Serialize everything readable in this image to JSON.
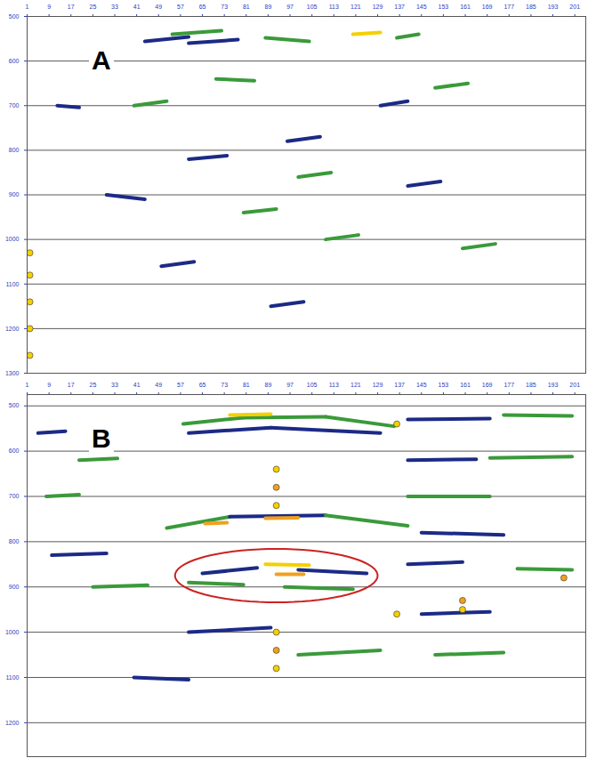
{
  "chart_data": [
    {
      "type": "seismic",
      "title": "A",
      "xlim": [
        1,
        205
      ],
      "xticks": [
        1,
        9,
        17,
        25,
        33,
        41,
        49,
        57,
        65,
        73,
        81,
        89,
        97,
        105,
        113,
        121,
        129,
        137,
        145,
        153,
        161,
        169,
        177,
        185,
        193,
        201
      ],
      "ylim": [
        500,
        1300
      ],
      "yticks": [
        500,
        600,
        700,
        800,
        900,
        1000,
        1100,
        1200,
        1300
      ],
      "grid": true,
      "events": [
        {
          "x": [
            44,
            60
          ],
          "y": [
            556,
            546
          ],
          "color": "#1c2a86"
        },
        {
          "x": [
            54,
            72
          ],
          "y": [
            540,
            532
          ],
          "color": "#3a9a3a"
        },
        {
          "x": [
            60,
            78
          ],
          "y": [
            560,
            552
          ],
          "color": "#1c2a86"
        },
        {
          "x": [
            88,
            104
          ],
          "y": [
            548,
            556
          ],
          "color": "#3a9a3a"
        },
        {
          "x": [
            120,
            130
          ],
          "y": [
            540,
            536
          ],
          "color": "#f4d000"
        },
        {
          "x": [
            136,
            144
          ],
          "y": [
            548,
            540
          ],
          "color": "#3a9a3a"
        },
        {
          "x": [
            12,
            20
          ],
          "y": [
            700,
            704
          ],
          "color": "#1c2a86"
        },
        {
          "x": [
            70,
            84
          ],
          "y": [
            640,
            644
          ],
          "color": "#3a9a3a"
        },
        {
          "x": [
            40,
            52
          ],
          "y": [
            700,
            690
          ],
          "color": "#3a9a3a"
        },
        {
          "x": [
            96,
            108
          ],
          "y": [
            780,
            770
          ],
          "color": "#1c2a86"
        },
        {
          "x": [
            130,
            140
          ],
          "y": [
            700,
            690
          ],
          "color": "#1c2a86"
        },
        {
          "x": [
            150,
            162
          ],
          "y": [
            660,
            650
          ],
          "color": "#3a9a3a"
        },
        {
          "x": [
            60,
            74
          ],
          "y": [
            820,
            812
          ],
          "color": "#1c2a86"
        },
        {
          "x": [
            100,
            112
          ],
          "y": [
            860,
            850
          ],
          "color": "#3a9a3a"
        },
        {
          "x": [
            30,
            44
          ],
          "y": [
            900,
            910
          ],
          "color": "#1c2a86"
        },
        {
          "x": [
            80,
            92
          ],
          "y": [
            940,
            932
          ],
          "color": "#3a9a3a"
        },
        {
          "x": [
            140,
            152
          ],
          "y": [
            880,
            870
          ],
          "color": "#1c2a86"
        },
        {
          "x": [
            110,
            122
          ],
          "y": [
            1000,
            990
          ],
          "color": "#3a9a3a"
        },
        {
          "x": [
            50,
            62
          ],
          "y": [
            1060,
            1050
          ],
          "color": "#1c2a86"
        },
        {
          "x": [
            160,
            172
          ],
          "y": [
            1020,
            1010
          ],
          "color": "#3a9a3a"
        },
        {
          "x": [
            90,
            102
          ],
          "y": [
            1150,
            1140
          ],
          "color": "#1c2a86"
        }
      ],
      "spots": [
        {
          "x": 2,
          "y": 1030,
          "color": "#f4d000"
        },
        {
          "x": 2,
          "y": 1080,
          "color": "#f4d000"
        },
        {
          "x": 2,
          "y": 1140,
          "color": "#f4d000"
        },
        {
          "x": 2,
          "y": 1200,
          "color": "#f4d000"
        },
        {
          "x": 2,
          "y": 1260,
          "color": "#f4d000"
        }
      ]
    },
    {
      "type": "seismic",
      "title": "B",
      "xlim": [
        1,
        205
      ],
      "xticks": [
        1,
        9,
        17,
        25,
        33,
        41,
        49,
        57,
        65,
        73,
        81,
        89,
        97,
        105,
        113,
        121,
        129,
        137,
        145,
        153,
        161,
        169,
        177,
        185,
        193,
        201
      ],
      "ylim": [
        475,
        1275
      ],
      "yticks": [
        500,
        600,
        700,
        800,
        900,
        1000,
        1100,
        1200
      ],
      "grid": true,
      "events": [
        {
          "x": [
            58,
            80
          ],
          "y": [
            540,
            526
          ],
          "color": "#3a9a3a"
        },
        {
          "x": [
            80,
            110
          ],
          "y": [
            526,
            524
          ],
          "color": "#3a9a3a"
        },
        {
          "x": [
            110,
            135
          ],
          "y": [
            524,
            545
          ],
          "color": "#3a9a3a"
        },
        {
          "x": [
            60,
            90
          ],
          "y": [
            560,
            548
          ],
          "color": "#1c2a86"
        },
        {
          "x": [
            90,
            130
          ],
          "y": [
            548,
            560
          ],
          "color": "#1c2a86"
        },
        {
          "x": [
            75,
            90
          ],
          "y": [
            520,
            518
          ],
          "color": "#f4d000"
        },
        {
          "x": [
            52,
            75
          ],
          "y": [
            770,
            745
          ],
          "color": "#3a9a3a"
        },
        {
          "x": [
            75,
            110
          ],
          "y": [
            745,
            742
          ],
          "color": "#1c2a86"
        },
        {
          "x": [
            110,
            140
          ],
          "y": [
            742,
            765
          ],
          "color": "#3a9a3a"
        },
        {
          "x": [
            66,
            74
          ],
          "y": [
            760,
            758
          ],
          "color": "#f0a020"
        },
        {
          "x": [
            88,
            100
          ],
          "y": [
            748,
            747
          ],
          "color": "#f0a020"
        },
        {
          "x": [
            65,
            85
          ],
          "y": [
            870,
            858
          ],
          "color": "#1c2a86"
        },
        {
          "x": [
            88,
            104
          ],
          "y": [
            850,
            852
          ],
          "color": "#f4d000"
        },
        {
          "x": [
            92,
            102
          ],
          "y": [
            872,
            872
          ],
          "color": "#f0a020"
        },
        {
          "x": [
            100,
            125
          ],
          "y": [
            862,
            870
          ],
          "color": "#1c2a86"
        },
        {
          "x": [
            60,
            80
          ],
          "y": [
            890,
            895
          ],
          "color": "#3a9a3a"
        },
        {
          "x": [
            95,
            120
          ],
          "y": [
            900,
            905
          ],
          "color": "#3a9a3a"
        },
        {
          "x": [
            140,
            170
          ],
          "y": [
            530,
            528
          ],
          "color": "#1c2a86"
        },
        {
          "x": [
            175,
            200
          ],
          "y": [
            520,
            522
          ],
          "color": "#3a9a3a"
        },
        {
          "x": [
            140,
            165
          ],
          "y": [
            620,
            618
          ],
          "color": "#1c2a86"
        },
        {
          "x": [
            170,
            200
          ],
          "y": [
            615,
            612
          ],
          "color": "#3a9a3a"
        },
        {
          "x": [
            140,
            170
          ],
          "y": [
            700,
            700
          ],
          "color": "#3a9a3a"
        },
        {
          "x": [
            145,
            175
          ],
          "y": [
            780,
            785
          ],
          "color": "#1c2a86"
        },
        {
          "x": [
            140,
            160
          ],
          "y": [
            850,
            845
          ],
          "color": "#1c2a86"
        },
        {
          "x": [
            180,
            200
          ],
          "y": [
            860,
            862
          ],
          "color": "#3a9a3a"
        },
        {
          "x": [
            145,
            170
          ],
          "y": [
            960,
            955
          ],
          "color": "#1c2a86"
        },
        {
          "x": [
            150,
            175
          ],
          "y": [
            1050,
            1045
          ],
          "color": "#3a9a3a"
        },
        {
          "x": [
            5,
            15
          ],
          "y": [
            560,
            556
          ],
          "color": "#1c2a86"
        },
        {
          "x": [
            20,
            34
          ],
          "y": [
            620,
            616
          ],
          "color": "#3a9a3a"
        },
        {
          "x": [
            8,
            20
          ],
          "y": [
            700,
            696
          ],
          "color": "#3a9a3a"
        },
        {
          "x": [
            10,
            30
          ],
          "y": [
            830,
            826
          ],
          "color": "#1c2a86"
        },
        {
          "x": [
            25,
            45
          ],
          "y": [
            900,
            896
          ],
          "color": "#3a9a3a"
        },
        {
          "x": [
            60,
            90
          ],
          "y": [
            1000,
            990
          ],
          "color": "#1c2a86"
        },
        {
          "x": [
            100,
            130
          ],
          "y": [
            1050,
            1040
          ],
          "color": "#3a9a3a"
        },
        {
          "x": [
            40,
            60
          ],
          "y": [
            1100,
            1105
          ],
          "color": "#1c2a86"
        }
      ],
      "spots": [
        {
          "x": 92,
          "y": 640,
          "color": "#f4d000"
        },
        {
          "x": 92,
          "y": 680,
          "color": "#f0a020"
        },
        {
          "x": 92,
          "y": 720,
          "color": "#f4d000"
        },
        {
          "x": 92,
          "y": 1000,
          "color": "#f4d000"
        },
        {
          "x": 92,
          "y": 1040,
          "color": "#f0a020"
        },
        {
          "x": 92,
          "y": 1080,
          "color": "#f4d000"
        },
        {
          "x": 136,
          "y": 540,
          "color": "#f4d000"
        },
        {
          "x": 136,
          "y": 960,
          "color": "#f4d000"
        },
        {
          "x": 160,
          "y": 930,
          "color": "#f0a020"
        },
        {
          "x": 160,
          "y": 950,
          "color": "#f4d000"
        },
        {
          "x": 197,
          "y": 880,
          "color": "#f0a020"
        }
      ],
      "highlight": {
        "x": [
          55,
          129
        ],
        "y": [
          816,
          934
        ],
        "color": "#cc2222"
      }
    }
  ]
}
